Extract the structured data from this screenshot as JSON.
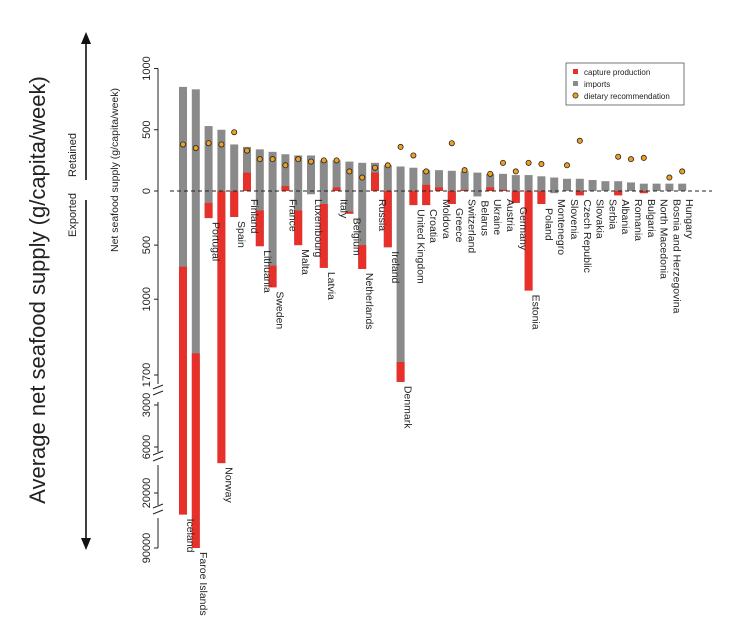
{
  "chart_data": {
    "type": "bar",
    "title": "",
    "outer_ylabel": "Average net seafood supply (g/capita/week)",
    "inner_ylabel": "Net seafood supply (g/capita/week)",
    "retained_label": "Retained",
    "exported_label": "Exported",
    "zero_line": "dashed",
    "y_ticks_positive": [
      "0",
      "500",
      "1000"
    ],
    "y_ticks_negative": [
      "0",
      "500",
      "1000",
      "1700",
      "3000",
      "6000",
      "20000",
      "90000"
    ],
    "y_scale_note": "Negative (exported) side uses a broken axis with segments 0-1700, 3000-6000, 6000-20000, 20000-90000",
    "legend": {
      "position": "top-right",
      "entries": [
        {
          "label": "capture production",
          "color": "#e8302a",
          "marker": "square"
        },
        {
          "label": "imports",
          "color": "#8a8a8a",
          "marker": "square"
        },
        {
          "label": "dietary recommendation",
          "color": "#f0a020",
          "marker": "circle"
        }
      ]
    },
    "colors": {
      "capture": "#e8302a",
      "imports": "#8a8a8a",
      "dot_fill": "#f0a020",
      "dot_edge": "#222222"
    },
    "series": [
      {
        "name": "capture production",
        "note": "bars shown below zero (exported share), values in g/capita/week, approximate"
      },
      {
        "name": "imports",
        "note": "retained supply above zero, g/capita/week, approximate"
      },
      {
        "name": "dietary recommendation",
        "note": "points, g/capita/week, approximate"
      }
    ],
    "countries": [
      {
        "name": "Iceland",
        "pos": 850,
        "red_pos": 0,
        "red_neg": [
          700,
          25000
        ],
        "neg": 25000,
        "diet": 380
      },
      {
        "name": "Faroe Islands",
        "pos": 830,
        "red_pos": 0,
        "red_neg": [
          1500,
          90000
        ],
        "neg": 90000,
        "diet": 350
      },
      {
        "name": "Portugal",
        "pos": 530,
        "red_pos": 0,
        "red_neg": [
          110,
          250
        ],
        "neg": 250,
        "diet": 390
      },
      {
        "name": "Norway",
        "pos": 500,
        "red_pos": 0,
        "red_neg": [
          0,
          6500
        ],
        "neg": 6500,
        "diet": 380
      },
      {
        "name": "Spain",
        "pos": 380,
        "red_pos": 0,
        "red_neg": [
          0,
          240
        ],
        "neg": 240,
        "diet": 480
      },
      {
        "name": "Finland",
        "pos": 360,
        "red_pos": 150,
        "red_neg": [
          0,
          0
        ],
        "neg": 0,
        "diet": 330
      },
      {
        "name": "Lithuania",
        "pos": 340,
        "red_pos": 0,
        "red_neg": [
          180,
          510
        ],
        "neg": 510,
        "diet": 260
      },
      {
        "name": "Sweden",
        "pos": 320,
        "red_pos": 0,
        "red_neg": [
          690,
          890
        ],
        "neg": 890,
        "diet": 260
      },
      {
        "name": "France",
        "pos": 300,
        "red_pos": 40,
        "red_neg": [
          0,
          0
        ],
        "neg": 0,
        "diet": 210
      },
      {
        "name": "Malta",
        "pos": 290,
        "red_pos": 0,
        "red_neg": [
          180,
          500
        ],
        "neg": 500,
        "diet": 260
      },
      {
        "name": "Luxembourg",
        "pos": 290,
        "red_pos": 0,
        "red_neg": [
          0,
          0
        ],
        "neg": 30,
        "diet": 240
      },
      {
        "name": "Latvia",
        "pos": 250,
        "red_pos": 0,
        "red_neg": [
          120,
          710
        ],
        "neg": 710,
        "diet": 250
      },
      {
        "name": "Italy",
        "pos": 250,
        "red_pos": 30,
        "red_neg": [
          0,
          0
        ],
        "neg": 0,
        "diet": 250
      },
      {
        "name": "Belgium",
        "pos": 240,
        "red_pos": 0,
        "red_neg": [
          190,
          210
        ],
        "neg": 210,
        "diet": 160
      },
      {
        "name": "Netherlands",
        "pos": 230,
        "red_pos": 0,
        "red_neg": [
          500,
          720
        ],
        "neg": 720,
        "diet": 110
      },
      {
        "name": "Russia",
        "pos": 230,
        "red_pos": 150,
        "red_neg": [
          0,
          0
        ],
        "neg": 0,
        "diet": 190
      },
      {
        "name": "Ireland",
        "pos": 210,
        "red_pos": 0,
        "red_neg": [
          0,
          520
        ],
        "neg": 520,
        "diet": 210
      },
      {
        "name": "Denmark",
        "pos": 200,
        "red_pos": 0,
        "red_neg": [
          1580,
          2000
        ],
        "neg": 2000,
        "diet": 360
      },
      {
        "name": "United Kingdom",
        "pos": 190,
        "red_pos": 0,
        "red_neg": [
          0,
          130
        ],
        "neg": 130,
        "diet": 290
      },
      {
        "name": "Croatia",
        "pos": 170,
        "red_pos": 50,
        "red_neg": [
          0,
          130
        ],
        "neg": 130,
        "diet": 160
      },
      {
        "name": "Moldova",
        "pos": 170,
        "red_pos": 30,
        "red_neg": [
          0,
          0
        ],
        "neg": 0,
        "diet": 0
      },
      {
        "name": "Greece",
        "pos": 165,
        "red_pos": 0,
        "red_neg": [
          0,
          120
        ],
        "neg": 120,
        "diet": 390
      },
      {
        "name": "Switzerland",
        "pos": 160,
        "red_pos": 10,
        "red_neg": [
          0,
          0
        ],
        "neg": 0,
        "diet": 170
      },
      {
        "name": "Belarus",
        "pos": 150,
        "red_pos": 0,
        "red_neg": [
          0,
          0
        ],
        "neg": 50,
        "diet": 0
      },
      {
        "name": "Ukraine",
        "pos": 140,
        "red_pos": 30,
        "red_neg": [
          0,
          0
        ],
        "neg": 0,
        "diet": 140
      },
      {
        "name": "Austria",
        "pos": 140,
        "red_pos": 10,
        "red_neg": [
          0,
          0
        ],
        "neg": 0,
        "diet": 230
      },
      {
        "name": "Germany",
        "pos": 130,
        "red_pos": 0,
        "red_neg": [
          0,
          110
        ],
        "neg": 110,
        "diet": 160
      },
      {
        "name": "Estonia",
        "pos": 130,
        "red_pos": 0,
        "red_neg": [
          0,
          920
        ],
        "neg": 920,
        "diet": 230
      },
      {
        "name": "Poland",
        "pos": 120,
        "red_pos": 0,
        "red_neg": [
          0,
          120
        ],
        "neg": 120,
        "diet": 220
      },
      {
        "name": "Montenegro",
        "pos": 110,
        "red_pos": 0,
        "red_neg": [
          0,
          0
        ],
        "neg": 20,
        "diet": 0
      },
      {
        "name": "Slovenia",
        "pos": 100,
        "red_pos": 0,
        "red_neg": [
          0,
          0
        ],
        "neg": 0,
        "diet": 210
      },
      {
        "name": "Czech Republic",
        "pos": 100,
        "red_pos": 0,
        "red_neg": [
          0,
          40
        ],
        "neg": 40,
        "diet": 410
      },
      {
        "name": "Slovakia",
        "pos": 90,
        "red_pos": 0,
        "red_neg": [
          0,
          0
        ],
        "neg": 0,
        "diet": 0
      },
      {
        "name": "Serbia",
        "pos": 80,
        "red_pos": 0,
        "red_neg": [
          0,
          0
        ],
        "neg": 0,
        "diet": 0
      },
      {
        "name": "Albania",
        "pos": 80,
        "red_pos": 0,
        "red_neg": [
          0,
          40
        ],
        "neg": 40,
        "diet": 280
      },
      {
        "name": "Romania",
        "pos": 70,
        "red_pos": 0,
        "red_neg": [
          0,
          0
        ],
        "neg": 0,
        "diet": 260
      },
      {
        "name": "Bulgaria",
        "pos": 60,
        "red_pos": 0,
        "red_neg": [
          0,
          20
        ],
        "neg": 20,
        "diet": 270
      },
      {
        "name": "North Macedonia",
        "pos": 60,
        "red_pos": 0,
        "red_neg": [
          0,
          0
        ],
        "neg": 0,
        "diet": 0
      },
      {
        "name": "Bosnia and Herzegovina",
        "pos": 60,
        "red_pos": 0,
        "red_neg": [
          0,
          0
        ],
        "neg": 0,
        "diet": 110
      },
      {
        "name": "Hungary",
        "pos": 60,
        "red_pos": 0,
        "red_neg": [
          0,
          0
        ],
        "neg": 0,
        "diet": 160
      }
    ]
  }
}
